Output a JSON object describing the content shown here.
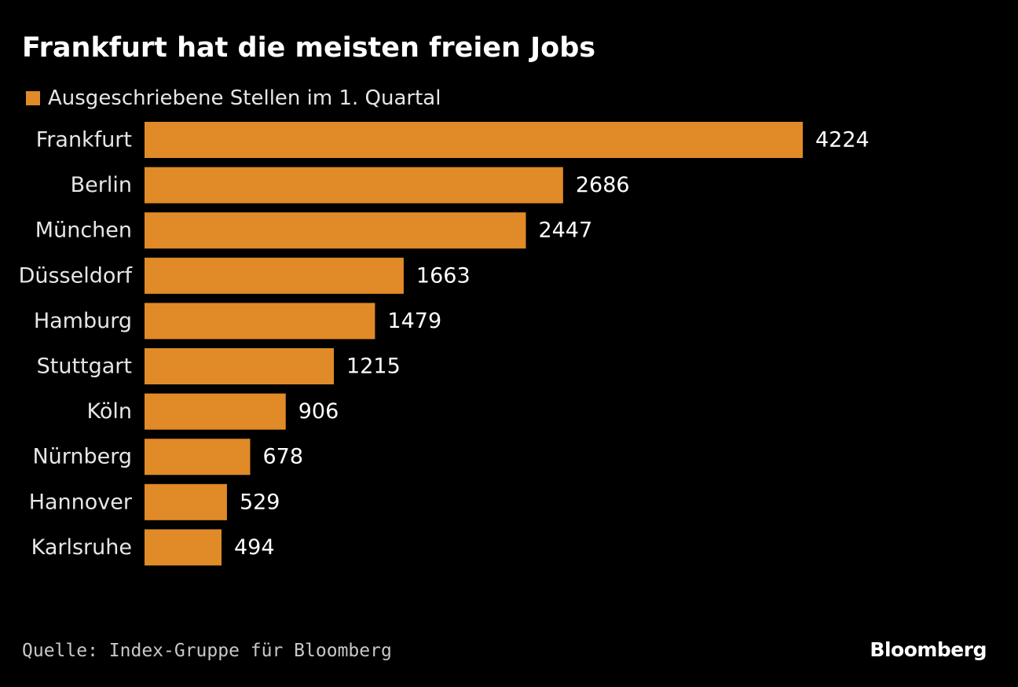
{
  "chart_data": {
    "type": "bar",
    "orientation": "horizontal",
    "title": "Frankfurt hat die meisten freien Jobs",
    "categories": [
      "Frankfurt",
      "Berlin",
      "München",
      "Düsseldorf",
      "Hamburg",
      "Stuttgart",
      "Köln",
      "Nürnberg",
      "Hannover",
      "Karlsruhe"
    ],
    "series": [
      {
        "name": "Ausgeschriebene Stellen im 1. Quartal",
        "values": [
          4224,
          2686,
          2447,
          1663,
          1479,
          1215,
          906,
          678,
          529,
          494
        ],
        "color": "#e08a28"
      }
    ],
    "data_labels": true,
    "grid": false,
    "legend_position": "top-left"
  },
  "footer": {
    "source": "Quelle: Index-Gruppe für Bloomberg",
    "brand": "Bloomberg"
  },
  "colors": {
    "background": "#000000",
    "bar": "#e08a28",
    "text": "#ffffff"
  }
}
